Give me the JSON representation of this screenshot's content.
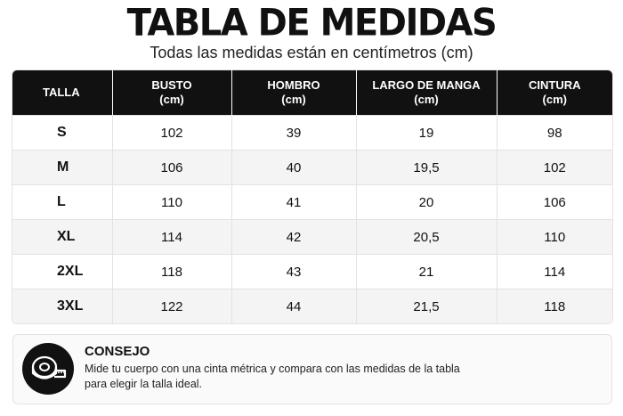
{
  "header": {
    "title": "TABLA DE MEDIDAS",
    "subtitle": "Todas las medidas están en centímetros (cm)"
  },
  "table": {
    "columns": [
      {
        "label": "TALLA",
        "unit": ""
      },
      {
        "label": "BUSTO",
        "unit": "(cm)"
      },
      {
        "label": "HOMBRO",
        "unit": "(cm)"
      },
      {
        "label": "LARGO DE MANGA",
        "unit": "(cm)"
      },
      {
        "label": "CINTURA",
        "unit": "(cm)"
      }
    ],
    "rows": [
      [
        "S",
        "102",
        "39",
        "19",
        "98"
      ],
      [
        "M",
        "106",
        "40",
        "19,5",
        "102"
      ],
      [
        "L",
        "110",
        "41",
        "20",
        "106"
      ],
      [
        "XL",
        "114",
        "42",
        "20,5",
        "110"
      ],
      [
        "2XL",
        "118",
        "43",
        "21",
        "114"
      ],
      [
        "3XL",
        "122",
        "44",
        "21,5",
        "118"
      ]
    ]
  },
  "tip": {
    "icon": "measuring-tape-icon",
    "title": "CONSEJO",
    "text_line1": "Mide tu cuerpo con una cinta métrica y compara con las medidas de la tabla",
    "text_line2": "para elegir la talla ideal."
  },
  "colors": {
    "header_bg": "#111111",
    "stripe_bg": "#f4f4f4"
  }
}
